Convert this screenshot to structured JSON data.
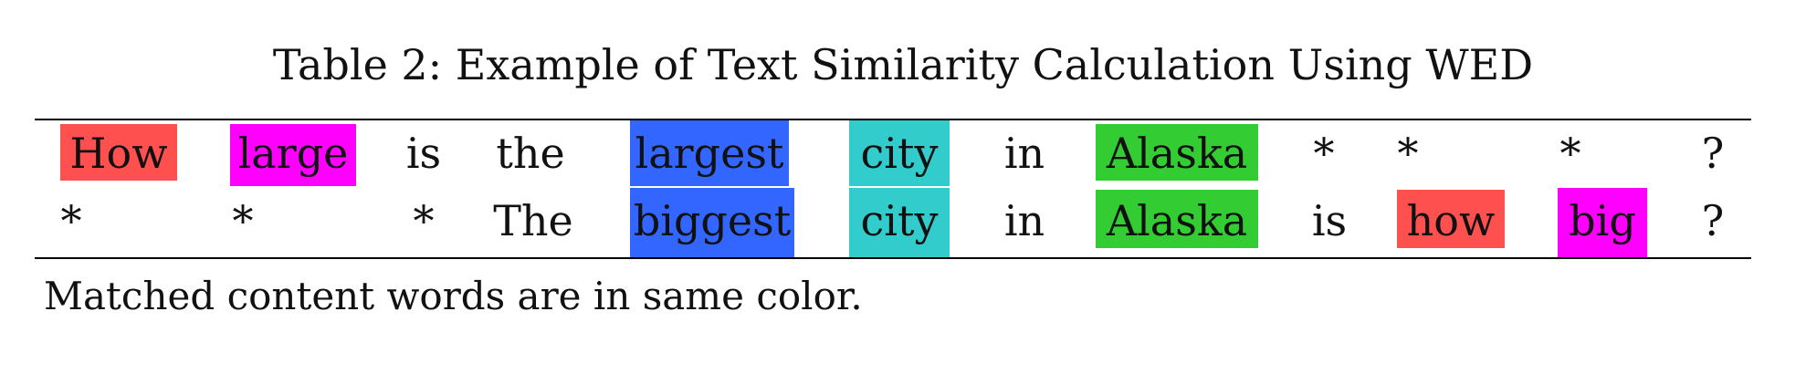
{
  "caption": "Table 2: Example of Text Similarity Calculation Using WED",
  "colors": {
    "how": "#ff5050",
    "large_big": "#ff00ff",
    "largest_biggest": "#3366ff",
    "city": "#33cccc",
    "alaska": "#33cc33"
  },
  "table": {
    "rows": [
      [
        "How",
        "large",
        "is",
        "the",
        "largest",
        "city",
        "in",
        "Alaska",
        "*",
        "*",
        "*",
        "?"
      ],
      [
        "*",
        "*",
        "*",
        "The",
        "biggest",
        "city",
        "in",
        "Alaska",
        "is",
        "how",
        "big",
        "?"
      ]
    ]
  },
  "note": "Matched content words are in same color."
}
